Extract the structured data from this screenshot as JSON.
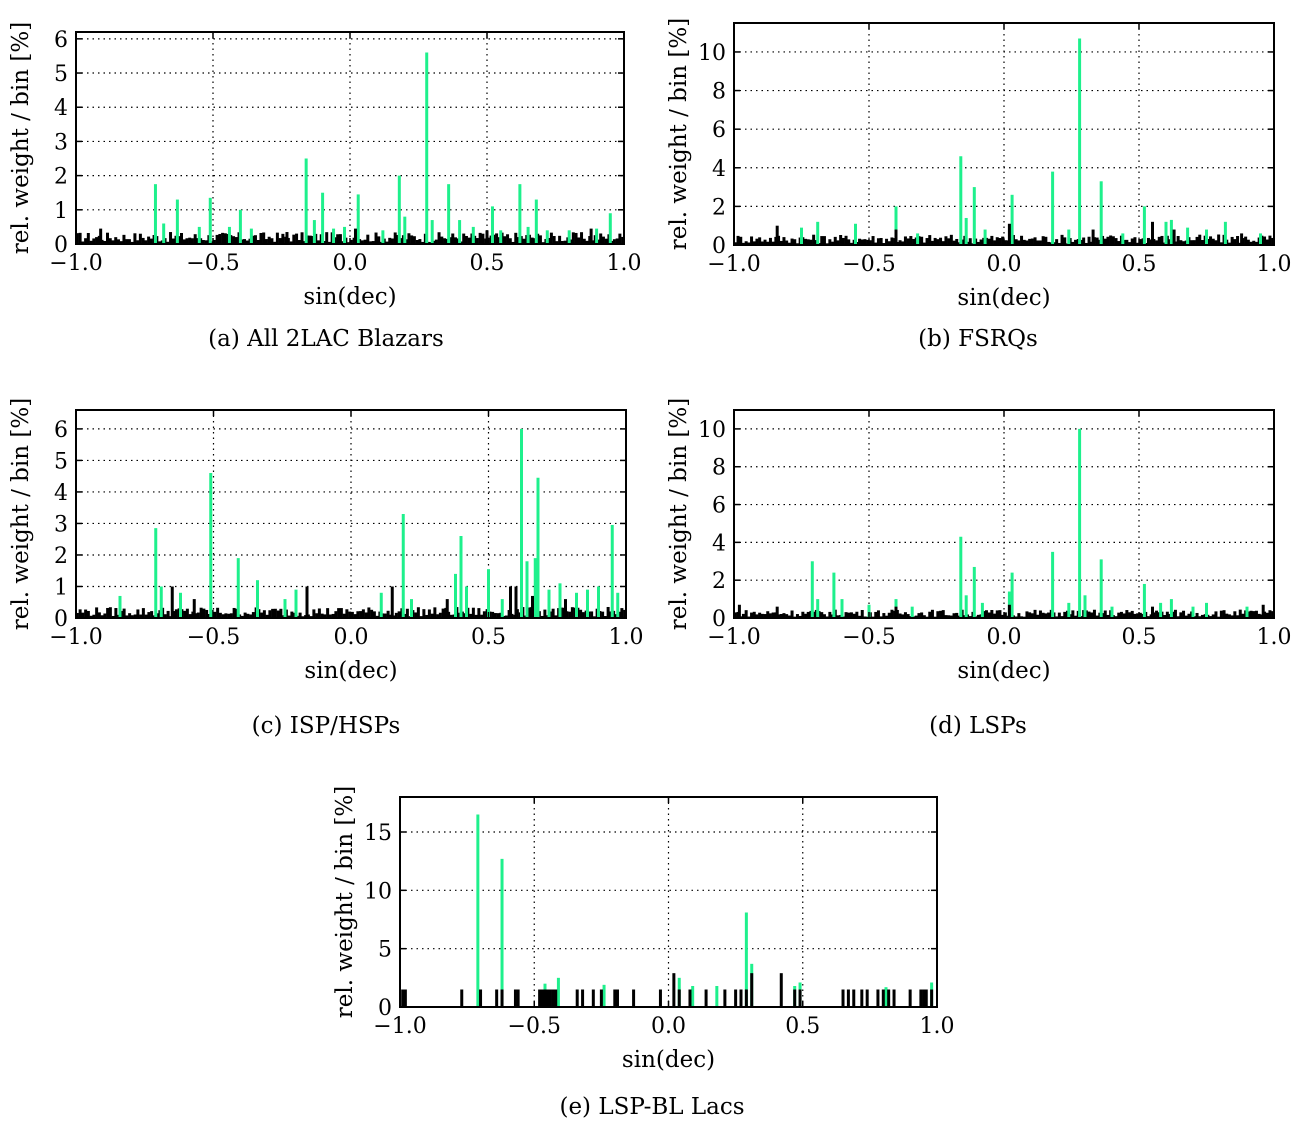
{
  "colors": {
    "model": "#1ef08c",
    "data": "#000000"
  },
  "chart_data": [
    {
      "id": "a",
      "type": "bar",
      "caption": "(a) All 2LAC Blazars",
      "xlabel": "sin(dec)",
      "ylabel": "rel. weight / bin [%]",
      "xlim": [
        -1.0,
        1.0
      ],
      "ylim": [
        0,
        6.2
      ],
      "xticks": [
        -1.0,
        -0.5,
        0.0,
        0.5,
        1.0
      ],
      "xtick_labels": [
        "−1.0",
        "−0.5",
        "0.0",
        "0.5",
        "1.0"
      ],
      "yticks": [
        0,
        1,
        2,
        3,
        4,
        5,
        6
      ],
      "ytick_labels": [
        "0",
        "1",
        "2",
        "3",
        "4",
        "5",
        "6"
      ],
      "grid": true,
      "green_peaks": [
        [
          -0.71,
          1.75
        ],
        [
          -0.68,
          0.6
        ],
        [
          -0.63,
          1.3
        ],
        [
          -0.55,
          0.5
        ],
        [
          -0.51,
          1.35
        ],
        [
          -0.44,
          0.5
        ],
        [
          -0.4,
          1.0
        ],
        [
          -0.36,
          0.45
        ],
        [
          -0.16,
          2.5
        ],
        [
          -0.13,
          0.7
        ],
        [
          -0.1,
          1.5
        ],
        [
          -0.06,
          0.45
        ],
        [
          -0.02,
          0.5
        ],
        [
          0.03,
          1.45
        ],
        [
          0.12,
          0.4
        ],
        [
          0.18,
          2.0
        ],
        [
          0.2,
          0.8
        ],
        [
          0.28,
          5.6
        ],
        [
          0.3,
          0.7
        ],
        [
          0.36,
          1.75
        ],
        [
          0.4,
          0.7
        ],
        [
          0.45,
          0.5
        ],
        [
          0.52,
          1.1
        ],
        [
          0.55,
          0.4
        ],
        [
          0.62,
          1.75
        ],
        [
          0.65,
          0.5
        ],
        [
          0.68,
          1.3
        ],
        [
          0.72,
          0.4
        ],
        [
          0.8,
          0.4
        ],
        [
          0.9,
          0.45
        ],
        [
          0.95,
          0.9
        ]
      ],
      "black_level": 0.35,
      "black_peaks": [
        [
          -0.91,
          0.45
        ],
        [
          -0.23,
          0.35
        ],
        [
          0.02,
          0.45
        ],
        [
          0.5,
          0.4
        ],
        [
          0.88,
          0.45
        ]
      ]
    },
    {
      "id": "b",
      "type": "bar",
      "caption": "(b) FSRQs",
      "xlabel": "sin(dec)",
      "ylabel": "rel. weight / bin [%]",
      "xlim": [
        -1.0,
        1.0
      ],
      "ylim": [
        0,
        11.5
      ],
      "xticks": [
        -1.0,
        -0.5,
        0.0,
        0.5,
        1.0
      ],
      "xtick_labels": [
        "−1.0",
        "−0.5",
        "0.0",
        "0.5",
        "1.0"
      ],
      "yticks": [
        0,
        2,
        4,
        6,
        8,
        10
      ],
      "ytick_labels": [
        "0",
        "2",
        "4",
        "6",
        "8",
        "10"
      ],
      "grid": true,
      "green_peaks": [
        [
          -0.75,
          0.9
        ],
        [
          -0.69,
          1.2
        ],
        [
          -0.55,
          1.1
        ],
        [
          -0.4,
          2.0
        ],
        [
          -0.32,
          0.6
        ],
        [
          -0.16,
          4.6
        ],
        [
          -0.14,
          1.4
        ],
        [
          -0.11,
          3.0
        ],
        [
          -0.07,
          0.8
        ],
        [
          0.03,
          2.6
        ],
        [
          0.18,
          3.8
        ],
        [
          0.24,
          0.8
        ],
        [
          0.28,
          10.7
        ],
        [
          0.36,
          3.3
        ],
        [
          0.44,
          0.6
        ],
        [
          0.52,
          2.0
        ],
        [
          0.6,
          1.2
        ],
        [
          0.62,
          1.3
        ],
        [
          0.68,
          0.9
        ],
        [
          0.75,
          0.8
        ],
        [
          0.82,
          1.2
        ],
        [
          0.95,
          0.6
        ]
      ],
      "black_level": 0.55,
      "black_peaks": [
        [
          -0.84,
          1.0
        ],
        [
          -0.4,
          0.8
        ],
        [
          0.02,
          1.1
        ],
        [
          0.33,
          0.8
        ],
        [
          0.55,
          1.2
        ],
        [
          0.63,
          0.8
        ],
        [
          0.88,
          0.6
        ]
      ]
    },
    {
      "id": "c",
      "type": "bar",
      "caption": "(c) ISP/HSPs",
      "xlabel": "sin(dec)",
      "ylabel": "rel. weight / bin [%]",
      "xlim": [
        -1.0,
        1.0
      ],
      "ylim": [
        0,
        6.6
      ],
      "xticks": [
        -1.0,
        -0.5,
        0.0,
        0.5,
        1.0
      ],
      "xtick_labels": [
        "−1.0",
        "−0.5",
        "0.0",
        "0.5",
        "1.0"
      ],
      "yticks": [
        0,
        1,
        2,
        3,
        4,
        5,
        6
      ],
      "ytick_labels": [
        "0",
        "1",
        "2",
        "3",
        "4",
        "5",
        "6"
      ],
      "grid": true,
      "green_peaks": [
        [
          -0.84,
          0.7
        ],
        [
          -0.71,
          2.85
        ],
        [
          -0.69,
          1.0
        ],
        [
          -0.62,
          0.8
        ],
        [
          -0.51,
          4.6
        ],
        [
          -0.41,
          1.9
        ],
        [
          -0.34,
          1.2
        ],
        [
          -0.24,
          0.6
        ],
        [
          -0.2,
          0.9
        ],
        [
          0.11,
          0.8
        ],
        [
          0.19,
          3.3
        ],
        [
          0.22,
          0.6
        ],
        [
          0.38,
          1.4
        ],
        [
          0.4,
          2.6
        ],
        [
          0.42,
          1.0
        ],
        [
          0.5,
          1.55
        ],
        [
          0.55,
          0.6
        ],
        [
          0.6,
          0.9
        ],
        [
          0.62,
          6.0
        ],
        [
          0.64,
          1.8
        ],
        [
          0.67,
          1.9
        ],
        [
          0.68,
          4.45
        ],
        [
          0.72,
          0.9
        ],
        [
          0.76,
          1.1
        ],
        [
          0.82,
          0.8
        ],
        [
          0.86,
          0.9
        ],
        [
          0.9,
          1.0
        ],
        [
          0.95,
          2.95
        ],
        [
          0.97,
          0.8
        ]
      ],
      "black_level": 0.35,
      "black_peaks": [
        [
          -0.65,
          1.0
        ],
        [
          -0.57,
          0.6
        ],
        [
          -0.16,
          1.0
        ],
        [
          0.15,
          1.0
        ],
        [
          0.35,
          0.6
        ],
        [
          0.58,
          1.0
        ],
        [
          0.6,
          1.0
        ],
        [
          0.66,
          0.7
        ],
        [
          0.78,
          0.6
        ]
      ]
    },
    {
      "id": "d",
      "type": "bar",
      "caption": "(d) LSPs",
      "xlabel": "sin(dec)",
      "ylabel": "rel. weight / bin [%]",
      "xlim": [
        -1.0,
        1.0
      ],
      "ylim": [
        0,
        11.0
      ],
      "xticks": [
        -1.0,
        -0.5,
        0.0,
        0.5,
        1.0
      ],
      "xtick_labels": [
        "−1.0",
        "−0.5",
        "0.0",
        "0.5",
        "1.0"
      ],
      "yticks": [
        0,
        2,
        4,
        6,
        8,
        10
      ],
      "ytick_labels": [
        "0",
        "2",
        "4",
        "6",
        "8",
        "10"
      ],
      "grid": true,
      "green_peaks": [
        [
          -0.71,
          3.0
        ],
        [
          -0.69,
          1.0
        ],
        [
          -0.63,
          2.4
        ],
        [
          -0.6,
          1.0
        ],
        [
          -0.5,
          0.7
        ],
        [
          -0.4,
          1.0
        ],
        [
          -0.34,
          0.6
        ],
        [
          -0.16,
          4.3
        ],
        [
          -0.14,
          1.2
        ],
        [
          -0.11,
          2.7
        ],
        [
          -0.08,
          0.8
        ],
        [
          0.02,
          1.4
        ],
        [
          0.03,
          2.4
        ],
        [
          0.18,
          3.5
        ],
        [
          0.24,
          0.8
        ],
        [
          0.28,
          10.0
        ],
        [
          0.3,
          1.2
        ],
        [
          0.36,
          3.1
        ],
        [
          0.4,
          0.6
        ],
        [
          0.52,
          1.8
        ],
        [
          0.58,
          0.8
        ],
        [
          0.62,
          1.0
        ],
        [
          0.7,
          0.6
        ],
        [
          0.75,
          0.8
        ],
        [
          0.9,
          0.6
        ]
      ],
      "black_level": 0.45,
      "black_peaks": [
        [
          -0.98,
          0.7
        ],
        [
          -0.84,
          0.6
        ],
        [
          -0.4,
          0.6
        ],
        [
          0.02,
          0.7
        ],
        [
          0.55,
          0.6
        ],
        [
          0.96,
          0.7
        ]
      ]
    },
    {
      "id": "e",
      "type": "bar",
      "caption": "(e) LSP-BL Lacs",
      "xlabel": "sin(dec)",
      "ylabel": "rel. weight / bin [%]",
      "xlim": [
        -1.0,
        1.0
      ],
      "ylim": [
        0,
        18.0
      ],
      "xticks": [
        -1.0,
        -0.5,
        0.0,
        0.5,
        1.0
      ],
      "xtick_labels": [
        "−1.0",
        "−0.5",
        "0.0",
        "0.5",
        "1.0"
      ],
      "yticks": [
        0,
        5,
        10,
        15
      ],
      "ytick_labels": [
        "0",
        "5",
        "10",
        "15"
      ],
      "grid": true,
      "green_peaks": [
        [
          -0.71,
          16.5
        ],
        [
          -0.62,
          12.7
        ],
        [
          -0.46,
          2.0
        ],
        [
          -0.41,
          2.5
        ],
        [
          -0.24,
          1.9
        ],
        [
          0.04,
          2.5
        ],
        [
          0.09,
          1.8
        ],
        [
          0.18,
          1.8
        ],
        [
          0.29,
          8.1
        ],
        [
          0.31,
          3.7
        ],
        [
          0.47,
          1.8
        ],
        [
          0.49,
          2.1
        ],
        [
          0.81,
          1.7
        ],
        [
          0.98,
          2.1
        ]
      ],
      "black_level": 0,
      "black_bars": [
        [
          -0.99,
          1.5
        ],
        [
          -0.98,
          1.5
        ],
        [
          -0.77,
          1.5
        ],
        [
          -0.7,
          1.5
        ],
        [
          -0.62,
          1.5
        ],
        [
          -0.64,
          1.5
        ],
        [
          -0.57,
          1.5
        ],
        [
          -0.56,
          1.5
        ],
        [
          -0.48,
          1.5
        ],
        [
          -0.47,
          1.5
        ],
        [
          -0.46,
          1.5
        ],
        [
          -0.45,
          1.5
        ],
        [
          -0.44,
          1.5
        ],
        [
          -0.43,
          1.5
        ],
        [
          -0.42,
          1.5
        ],
        [
          -0.34,
          1.5
        ],
        [
          -0.32,
          1.5
        ],
        [
          -0.28,
          1.5
        ],
        [
          -0.25,
          1.5
        ],
        [
          -0.2,
          1.5
        ],
        [
          -0.19,
          1.5
        ],
        [
          -0.13,
          1.5
        ],
        [
          -0.03,
          1.5
        ],
        [
          0.02,
          2.9
        ],
        [
          0.04,
          1.5
        ],
        [
          0.08,
          1.5
        ],
        [
          0.14,
          1.5
        ],
        [
          0.21,
          1.5
        ],
        [
          0.25,
          1.5
        ],
        [
          0.27,
          1.5
        ],
        [
          0.29,
          1.5
        ],
        [
          0.31,
          2.9
        ],
        [
          0.42,
          2.9
        ],
        [
          0.47,
          1.5
        ],
        [
          0.49,
          1.5
        ],
        [
          0.65,
          1.5
        ],
        [
          0.67,
          1.5
        ],
        [
          0.69,
          1.5
        ],
        [
          0.72,
          1.5
        ],
        [
          0.74,
          1.5
        ],
        [
          0.78,
          1.5
        ],
        [
          0.8,
          1.5
        ],
        [
          0.82,
          1.5
        ],
        [
          0.84,
          1.5
        ],
        [
          0.9,
          1.5
        ],
        [
          0.94,
          1.5
        ],
        [
          0.95,
          1.5
        ],
        [
          0.96,
          1.5
        ],
        [
          0.98,
          1.5
        ]
      ]
    }
  ]
}
